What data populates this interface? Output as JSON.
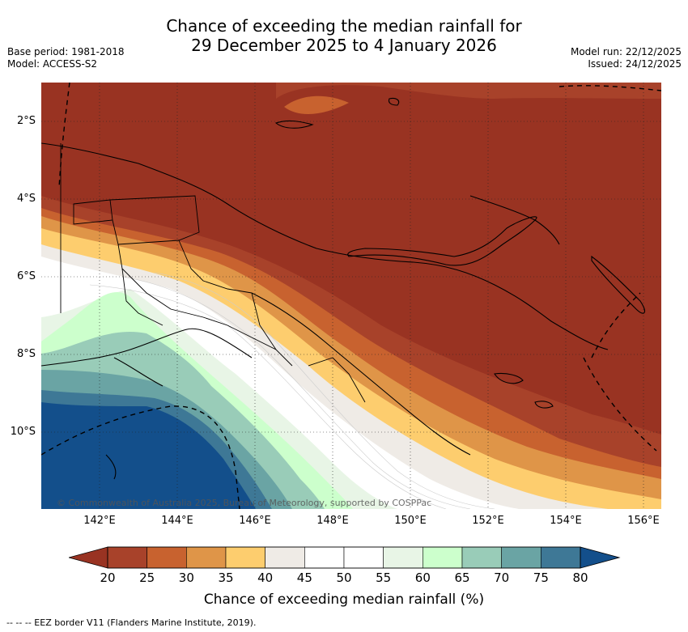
{
  "header": {
    "title_line1": "Chance of exceeding the median rainfall for",
    "title_line2": "29 December 2025 to 4 January 2026",
    "base_period": "Base period: 1981-2018",
    "model": "Model: ACCESS-S2",
    "model_run": "Model run: 22/12/2025",
    "issued": "Issued: 24/12/2025"
  },
  "map": {
    "lat_labels": [
      "2°S",
      "4°S",
      "6°S",
      "8°S",
      "10°S"
    ],
    "lon_labels": [
      "142°E",
      "144°E",
      "146°E",
      "148°E",
      "150°E",
      "152°E",
      "154°E",
      "156°E"
    ],
    "credit": "© Commonwealth of Australia 2025, Bureau of Meteorology, supported by COSPPac"
  },
  "colorbar": {
    "ticks": [
      "20",
      "25",
      "30",
      "35",
      "40",
      "45",
      "50",
      "55",
      "60",
      "65",
      "70",
      "75",
      "80"
    ],
    "colors": [
      "#993322",
      "#a8422a",
      "#c8622f",
      "#df9548",
      "#fdcd6e",
      "#efebe6",
      "#ffffff",
      "#ffffff",
      "#e8f5e6",
      "#ccffcc",
      "#99ccb8",
      "#6aa4a4",
      "#3e7896",
      "#134f8b"
    ],
    "title": "Chance of exceeding median rainfall (%)"
  },
  "legend": {
    "eez": "-- -- -- EEZ border V11 (Flanders Marine Institute, 2019)."
  }
}
